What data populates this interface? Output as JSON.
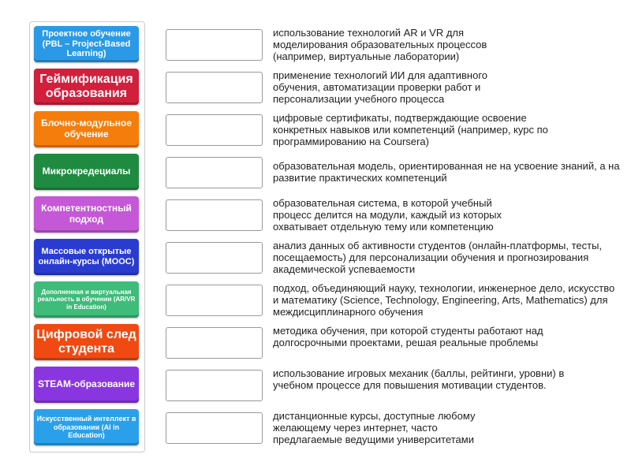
{
  "tiles": [
    {
      "label": "Проектное обучение (PBL – Project-Based Learning)",
      "color": "#2a9ae6",
      "size": 11
    },
    {
      "label": "Геймификация образования",
      "color": "#d11f3c",
      "size": 16
    },
    {
      "label": "Блочно-модульное обучение",
      "color": "#f57d0c",
      "size": 12
    },
    {
      "label": "Микрокредециалы",
      "color": "#1f8b40",
      "size": 12
    },
    {
      "label": "Компетентностный подход",
      "color": "#c458d6",
      "size": 12
    },
    {
      "label": "Массовые открытые онлайн-курсы (MOOC)",
      "color": "#2a3cd0",
      "size": 11
    },
    {
      "label": "Дополненная и виртуальная реальность в обучении (AR/VR in Education)",
      "color": "#3fbb7a",
      "size": 8
    },
    {
      "label": "Цифровой след студента",
      "color": "#f04a12",
      "size": 16
    },
    {
      "label": "STEAM-образование",
      "color": "#8a36e0",
      "size": 12
    },
    {
      "label": "Искусственный интеллект в образовании (AI in Education)",
      "color": "#2aa0ea",
      "size": 9
    }
  ],
  "descriptions": [
    "использование технологий AR и VR для моделирования образовательных процессов (например, виртуальные лаборатории)",
    "применение технологий ИИ для адаптивного обучения, автоматизации проверки работ и персонализации учебного процесса",
    "цифровые сертификаты, подтверждающие освоение конкретных навыков или компетенций (например, курс по программированию на Coursera)",
    "образовательная модель, ориентированная не на усвоение знаний, а на развитие практических компетенций",
    "образовательная система, в которой учебный процесс делится на модули, каждый из которых охватывает отдельную тему или компетенцию",
    "анализ данных об активности студентов (онлайн-платформы, тесты, посещаемость) для персонализации обучения и прогнозирования академической успеваемости",
    "подход, объединяющий науку, технологии, инженерное дело, искусство и математику (Science, Technology, Engineering, Arts, Mathematics) для междисциплинарного обучения",
    "методика обучения, при которой студенты работают над долгосрочными проектами, решая реальные проблемы",
    "использование игровых механик (баллы, рейтинги, уровни) в учебном процессе для повышения мотивации студентов.",
    "дистанционные курсы, доступные любому желающему через интернет, часто предлагаемые ведущими университетами"
  ]
}
